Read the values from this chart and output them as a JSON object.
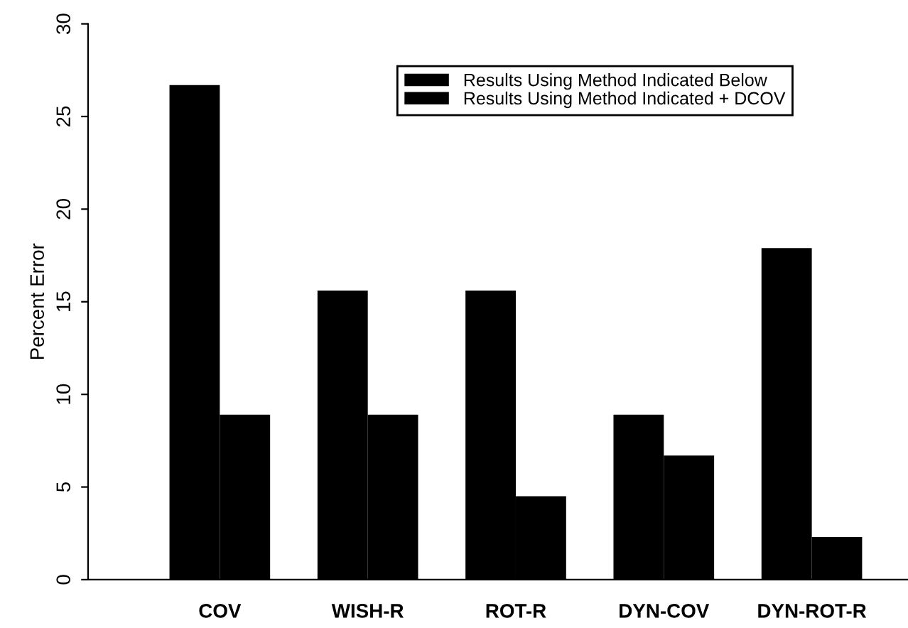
{
  "chart_data": {
    "type": "bar",
    "ylabel": "Percent Error",
    "categories": [
      "COV",
      "WISH-R",
      "ROT-R",
      "DYN-COV",
      "DYN-ROT-R"
    ],
    "series": [
      {
        "name": "Results Using Method Indicated Below",
        "color": "#000000",
        "values": [
          26.7,
          15.6,
          15.6,
          8.9,
          17.9
        ]
      },
      {
        "name": "Results Using Method Indicated + DCOV",
        "color": "#000000",
        "values": [
          8.9,
          8.9,
          4.5,
          6.7,
          2.3
        ]
      }
    ],
    "ylim": [
      0,
      30
    ],
    "yticks": [
      0,
      5,
      10,
      15,
      20,
      25,
      30
    ],
    "grid": false,
    "legend": "top right"
  }
}
